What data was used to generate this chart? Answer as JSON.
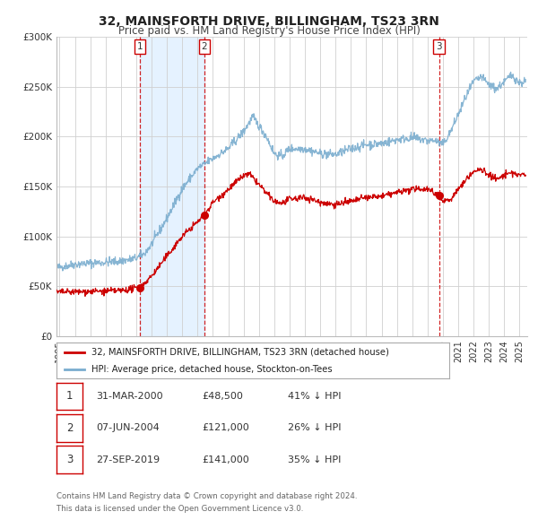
{
  "title": "32, MAINSFORTH DRIVE, BILLINGHAM, TS23 3RN",
  "subtitle": "Price paid vs. HM Land Registry's House Price Index (HPI)",
  "legend_label_red": "32, MAINSFORTH DRIVE, BILLINGHAM, TS23 3RN (detached house)",
  "legend_label_blue": "HPI: Average price, detached house, Stockton-on-Tees",
  "footnote1": "Contains HM Land Registry data © Crown copyright and database right 2024.",
  "footnote2": "This data is licensed under the Open Government Licence v3.0.",
  "transactions": [
    {
      "num": 1,
      "date": "31-MAR-2000",
      "price": "£48,500",
      "pct": "41% ↓ HPI",
      "year": 2000.25,
      "value": 48500
    },
    {
      "num": 2,
      "date": "07-JUN-2004",
      "price": "£121,000",
      "pct": "26% ↓ HPI",
      "year": 2004.44,
      "value": 121000
    },
    {
      "num": 3,
      "date": "27-SEP-2019",
      "price": "£141,000",
      "pct": "35% ↓ HPI",
      "year": 2019.75,
      "value": 141000
    }
  ],
  "color_red": "#cc0000",
  "color_blue": "#7aadcf",
  "color_bg_band": "#ddeeff",
  "ylim": [
    0,
    300000
  ],
  "xlim_start": 1994.8,
  "xlim_end": 2025.5,
  "yticks": [
    0,
    50000,
    100000,
    150000,
    200000,
    250000,
    300000
  ],
  "ytick_labels": [
    "£0",
    "£50K",
    "£100K",
    "£150K",
    "£200K",
    "£250K",
    "£300K"
  ],
  "xtick_years": [
    1995,
    1996,
    1997,
    1998,
    1999,
    2000,
    2001,
    2002,
    2003,
    2004,
    2005,
    2006,
    2007,
    2008,
    2009,
    2010,
    2011,
    2012,
    2013,
    2014,
    2015,
    2016,
    2017,
    2018,
    2019,
    2020,
    2021,
    2022,
    2023,
    2024,
    2025
  ]
}
